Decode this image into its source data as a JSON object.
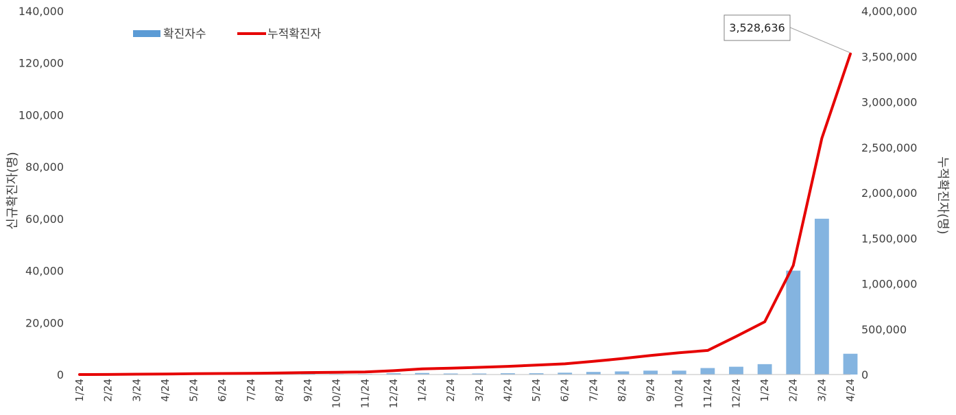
{
  "chart_data": {
    "type": "bar+line",
    "colors": {
      "bars": "#5b9bd5",
      "line": "#e60000",
      "text": "#404040"
    },
    "y_left": {
      "label": "신규확진자(명)",
      "range": [
        0,
        140000
      ],
      "ticks": [
        0,
        20000,
        40000,
        60000,
        80000,
        100000,
        120000,
        140000
      ],
      "tick_labels": [
        "0",
        "20,000",
        "40,000",
        "60,000",
        "80,000",
        "100,000",
        "120,000",
        "140,000"
      ]
    },
    "y_right": {
      "label": "누적확진자(명)",
      "range": [
        0,
        4000000
      ],
      "ticks": [
        0,
        500000,
        1000000,
        1500000,
        2000000,
        2500000,
        3000000,
        3500000,
        4000000
      ],
      "tick_labels": [
        "0",
        "500,000",
        "1,000,000",
        "1,500,000",
        "2,000,000",
        "2,500,000",
        "3,000,000",
        "3,500,000",
        "4,000,000"
      ]
    },
    "x_tick_labels": [
      "1/24",
      "2/24",
      "3/24",
      "4/24",
      "5/24",
      "6/24",
      "7/24",
      "8/24",
      "9/24",
      "10/24",
      "11/24",
      "12/24",
      "1/24",
      "2/24",
      "3/24",
      "4/24",
      "5/24",
      "6/24",
      "7/24",
      "8/24",
      "9/24",
      "10/24",
      "11/24",
      "12/24",
      "1/24",
      "2/24",
      "3/24",
      "4/24"
    ],
    "legend": {
      "position": "top-left",
      "items": [
        "확진자수",
        "누적확진자"
      ]
    },
    "series": [
      {
        "name": "확진자수",
        "kind": "bar",
        "axis": "left",
        "x": [
          "1/24",
          "2/24",
          "3/24",
          "4/24",
          "5/24",
          "6/24",
          "7/24",
          "8/24",
          "9/24",
          "10/24",
          "11/24",
          "12/24",
          "1/24",
          "2/24",
          "3/24",
          "4/24",
          "5/24",
          "6/24",
          "7/24",
          "8/24",
          "9/24",
          "10/24",
          "11/24",
          "12/24",
          "1/24",
          "2/24",
          "3/24",
          "4/24"
        ],
        "values": [
          0,
          10,
          150,
          100,
          100,
          150,
          200,
          300,
          300,
          200,
          200,
          500,
          600,
          400,
          400,
          500,
          500,
          700,
          1000,
          1200,
          1500,
          1500,
          2500,
          3000,
          4000,
          40000,
          60000,
          8000
        ]
      },
      {
        "name": "누적확진자",
        "kind": "line",
        "axis": "right",
        "x": [
          "1/24",
          "2/24",
          "3/24",
          "4/24",
          "5/24",
          "6/24",
          "7/24",
          "8/24",
          "9/24",
          "10/24",
          "11/24",
          "12/24",
          "1/24",
          "2/24",
          "3/24",
          "4/24",
          "5/24",
          "6/24",
          "7/24",
          "8/24",
          "9/24",
          "10/24",
          "11/24",
          "12/24",
          "1/24",
          "2/24",
          "3/24",
          "4/24"
        ],
        "values": [
          0,
          1000,
          4000,
          6000,
          9000,
          11000,
          13000,
          17000,
          22000,
          25000,
          29000,
          42000,
          62000,
          70000,
          79000,
          90000,
          104000,
          118000,
          145000,
          175000,
          210000,
          240000,
          265000,
          420000,
          580000,
          1200000,
          2600000,
          3480000
        ],
        "endpoint": {
          "x": "4/24",
          "value": 3528636,
          "label": "3,528,636"
        }
      }
    ]
  }
}
